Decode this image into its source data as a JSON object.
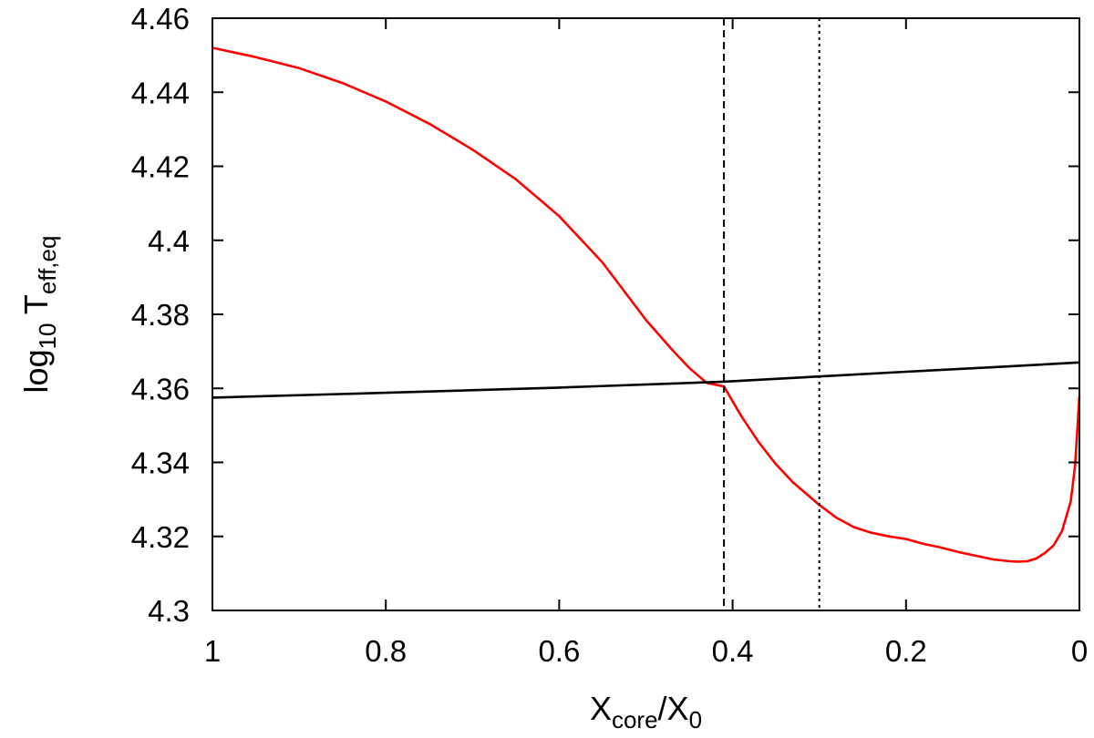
{
  "chart_data": {
    "type": "line",
    "title": "",
    "xlabel": {
      "main": "X",
      "sub": "core",
      "sep": "/X",
      "sub2": "0"
    },
    "ylabel": {
      "main": "log",
      "sub": "10",
      "mid": " T",
      "sub2": "eff,eq"
    },
    "xlim": [
      1,
      0
    ],
    "ylim": [
      4.3,
      4.46
    ],
    "x_reversed": true,
    "grid": false,
    "legend": "none",
    "x_ticks": [
      {
        "value": 1,
        "label": "1"
      },
      {
        "value": 0.8,
        "label": "0.8"
      },
      {
        "value": 0.6,
        "label": "0.6"
      },
      {
        "value": 0.4,
        "label": "0.4"
      },
      {
        "value": 0.2,
        "label": "0.2"
      },
      {
        "value": 0,
        "label": "0"
      }
    ],
    "y_ticks": [
      {
        "value": 4.3,
        "label": "4.3"
      },
      {
        "value": 4.32,
        "label": "4.32"
      },
      {
        "value": 4.34,
        "label": "4.34"
      },
      {
        "value": 4.36,
        "label": "4.36"
      },
      {
        "value": 4.38,
        "label": "4.38"
      },
      {
        "value": 4.4,
        "label": "4.4"
      },
      {
        "value": 4.42,
        "label": "4.42"
      },
      {
        "value": 4.44,
        "label": "4.44"
      },
      {
        "value": 4.46,
        "label": "4.46"
      }
    ],
    "series": [
      {
        "color": "#ff0000",
        "x": [
          1.0,
          0.95,
          0.9,
          0.85,
          0.8,
          0.75,
          0.7,
          0.65,
          0.6,
          0.55,
          0.5,
          0.47,
          0.45,
          0.43,
          0.41,
          0.39,
          0.37,
          0.35,
          0.33,
          0.3,
          0.28,
          0.26,
          0.24,
          0.22,
          0.2,
          0.18,
          0.16,
          0.14,
          0.12,
          0.1,
          0.08,
          0.07,
          0.06,
          0.05,
          0.04,
          0.03,
          0.02,
          0.01,
          0.005,
          0.0
        ],
        "y": [
          4.452,
          4.4495,
          4.4465,
          4.4425,
          4.4375,
          4.4315,
          4.4245,
          4.4165,
          4.4065,
          4.394,
          4.3785,
          4.3705,
          4.3655,
          4.3615,
          4.3605,
          4.3525,
          4.3455,
          4.3395,
          4.3345,
          4.3285,
          4.325,
          4.3225,
          4.321,
          4.32,
          4.3193,
          4.318,
          4.317,
          4.3158,
          4.3148,
          4.3138,
          4.3133,
          4.3132,
          4.3133,
          4.314,
          4.3155,
          4.3175,
          4.3215,
          4.3295,
          4.339,
          4.358
        ]
      },
      {
        "color": "#000000",
        "x": [
          1.0,
          0.8,
          0.6,
          0.41,
          0.3,
          0.2,
          0.1,
          0.0
        ],
        "y": [
          4.3575,
          4.3588,
          4.3602,
          4.3618,
          4.3632,
          4.3645,
          4.3657,
          4.367
        ]
      }
    ],
    "vlines": [
      {
        "x": 0.41,
        "style": "dashed",
        "color": "#000000"
      },
      {
        "x": 0.3,
        "style": "dotted",
        "color": "#000000"
      }
    ]
  }
}
